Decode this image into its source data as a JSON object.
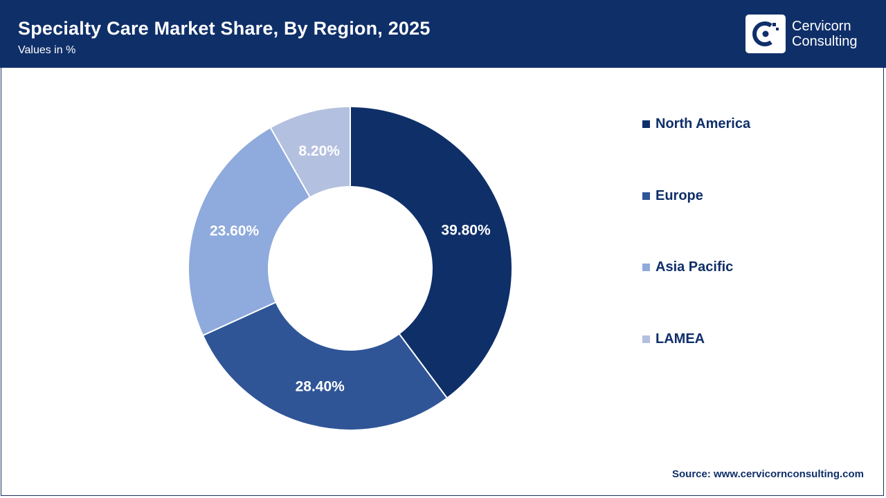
{
  "header": {
    "title": "Specialty Care Market Share, By Region, 2025",
    "subtitle": "Values in %",
    "logo_line1": "Cervicorn",
    "logo_line2": "Consulting"
  },
  "colors": {
    "header_bg": "#0f2f69",
    "text_dark": "#0f2f69"
  },
  "chart_data": {
    "type": "pie",
    "subtype": "donut",
    "title": "Specialty Care Market Share, By Region, 2025",
    "categories": [
      "North America",
      "Europe",
      "Asia Pacific",
      "LAMEA"
    ],
    "values": [
      39.8,
      28.4,
      23.6,
      8.2
    ],
    "labels": [
      "39.80%",
      "28.40%",
      "23.60%",
      "8.20%"
    ],
    "colors": [
      "#0f2f69",
      "#2f5597",
      "#8faadc",
      "#b4c0df"
    ],
    "legend_position": "right"
  },
  "source": "Source: www.cervicornconsulting.com"
}
